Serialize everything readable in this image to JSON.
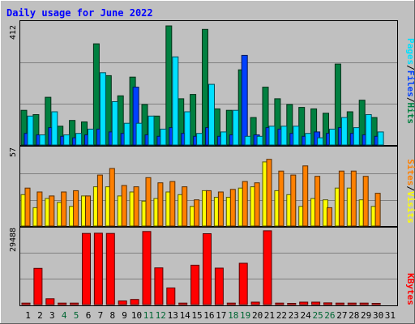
{
  "chart_data": {
    "type": "bar",
    "title": "Daily usage for June 2022",
    "categories": [
      "1",
      "2",
      "3",
      "4",
      "5",
      "6",
      "7",
      "8",
      "9",
      "10",
      "11",
      "12",
      "13",
      "14",
      "15",
      "16",
      "17",
      "18",
      "19",
      "20",
      "21",
      "22",
      "23",
      "24",
      "25",
      "26",
      "27",
      "28",
      "29",
      "30",
      "31"
    ],
    "weekend_days": [
      "4",
      "5",
      "11",
      "12",
      "18",
      "19",
      "25",
      "26"
    ],
    "panels": [
      {
        "id": "hits",
        "max_label": "412",
        "ymax": 412,
        "series": [
          {
            "name": "Hits",
            "color": "#008040",
            "values": [
              120,
              105,
              165,
              65,
              85,
              80,
              350,
              240,
              170,
              235,
              140,
              100,
              412,
              160,
              175,
              400,
              125,
              120,
              260,
              95,
              200,
              160,
              140,
              130,
              125,
              110,
              280,
              115,
              155,
              95,
              0
            ]
          },
          {
            "name": "Files",
            "color": "#0040FF",
            "values": [
              40,
              35,
              60,
              30,
              25,
              35,
              55,
              45,
              40,
              200,
              35,
              30,
              60,
              40,
              30,
              60,
              30,
              35,
              310,
              35,
              60,
              55,
              40,
              30,
              45,
              40,
              60,
              40,
              35,
              30,
              0
            ]
          },
          {
            "name": "Pages",
            "color": "#00E0FF",
            "values": [
              100,
              35,
              115,
              35,
              40,
              55,
              250,
              150,
              75,
              75,
              100,
              55,
              305,
              115,
              40,
              210,
              45,
              120,
              30,
              30,
              65,
              65,
              65,
              40,
              25,
              55,
              95,
              60,
              105,
              45,
              0
            ]
          }
        ]
      },
      {
        "id": "visits",
        "max_label": "57",
        "ymax": 57,
        "series": [
          {
            "name": "Visits",
            "color": "#FFFF00",
            "values": [
              24,
              14,
              21,
              18,
              15,
              23,
              30,
              30,
              23,
              26,
              19,
              21,
              26,
              24,
              15,
              27,
              22,
              22,
              29,
              30,
              49,
              27,
              24,
              15,
              21,
              20,
              29,
              29,
              20,
              15,
              0
            ]
          },
          {
            "name": "Sites",
            "color": "#FF8000",
            "values": [
              29,
              26,
              23,
              26,
              27,
              23,
              39,
              44,
              31,
              30,
              37,
              33,
              34,
              30,
              20,
              27,
              26,
              28,
              34,
              33,
              51,
              42,
              39,
              46,
              38,
              14,
              42,
              42,
              38,
              25,
              0
            ]
          }
        ]
      },
      {
        "id": "kbytes",
        "max_label": "29488",
        "ymax": 29488,
        "series": [
          {
            "name": "KBytes",
            "color": "#FF0000",
            "values": [
              600,
              14800,
              2400,
              600,
              600,
              29100,
              29200,
              29100,
              1500,
              2100,
              29900,
              15000,
              6800,
              600,
              16100,
              29000,
              14900,
              600,
              16900,
              1000,
              30200,
              600,
              500,
              1000,
              1000,
              700,
              600,
              600,
              600,
              500,
              0
            ]
          }
        ]
      }
    ],
    "legend_top": {
      "left": "Pages",
      "sep1": "/",
      "mid": "Files",
      "sep2": "/",
      "right": "Hits"
    },
    "legend_middle": {
      "left": "Sites",
      "sep1": "/",
      "right": "Visits"
    },
    "legend_bottom": {
      "label": "KBytes"
    },
    "colors": {
      "background": "#C0C0C0",
      "plot": "#C0C0C0",
      "title": "#0000FF",
      "weekend_label": "#006633",
      "weekday_label": "#000000",
      "grid": "#808080"
    }
  }
}
